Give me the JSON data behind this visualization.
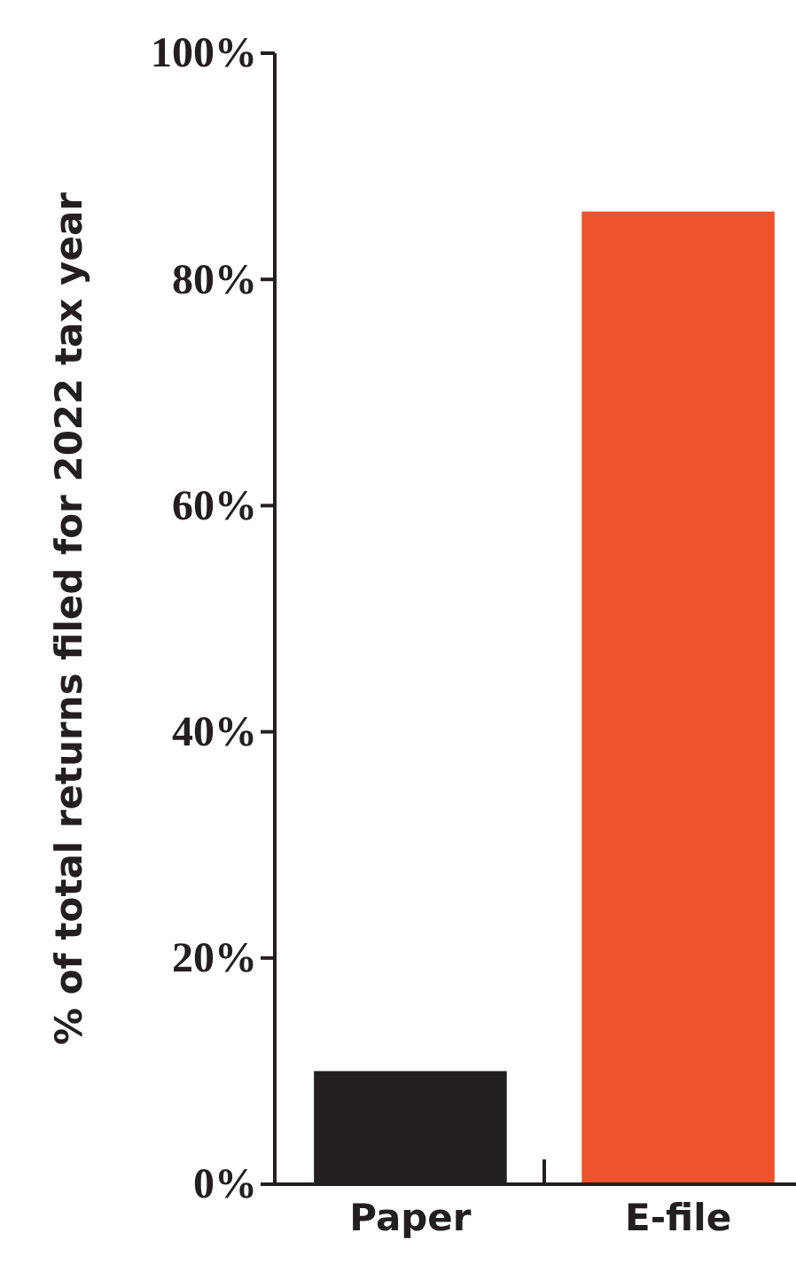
{
  "chart_data": {
    "type": "bar",
    "ylabel": "% of total returns filed for 2022 tax year",
    "categories": [
      "Paper",
      "E-file"
    ],
    "values": [
      10,
      86
    ],
    "colors": [
      "#231f20",
      "#ee532d"
    ],
    "ylim": [
      0,
      100
    ],
    "yticks": [
      {
        "value": 0,
        "label": "0%"
      },
      {
        "value": 20,
        "label": "20%"
      },
      {
        "value": 40,
        "label": "40%"
      },
      {
        "value": 60,
        "label": "60%"
      },
      {
        "value": 80,
        "label": "80%"
      },
      {
        "value": 100,
        "label": "100%"
      }
    ],
    "grid": false
  }
}
